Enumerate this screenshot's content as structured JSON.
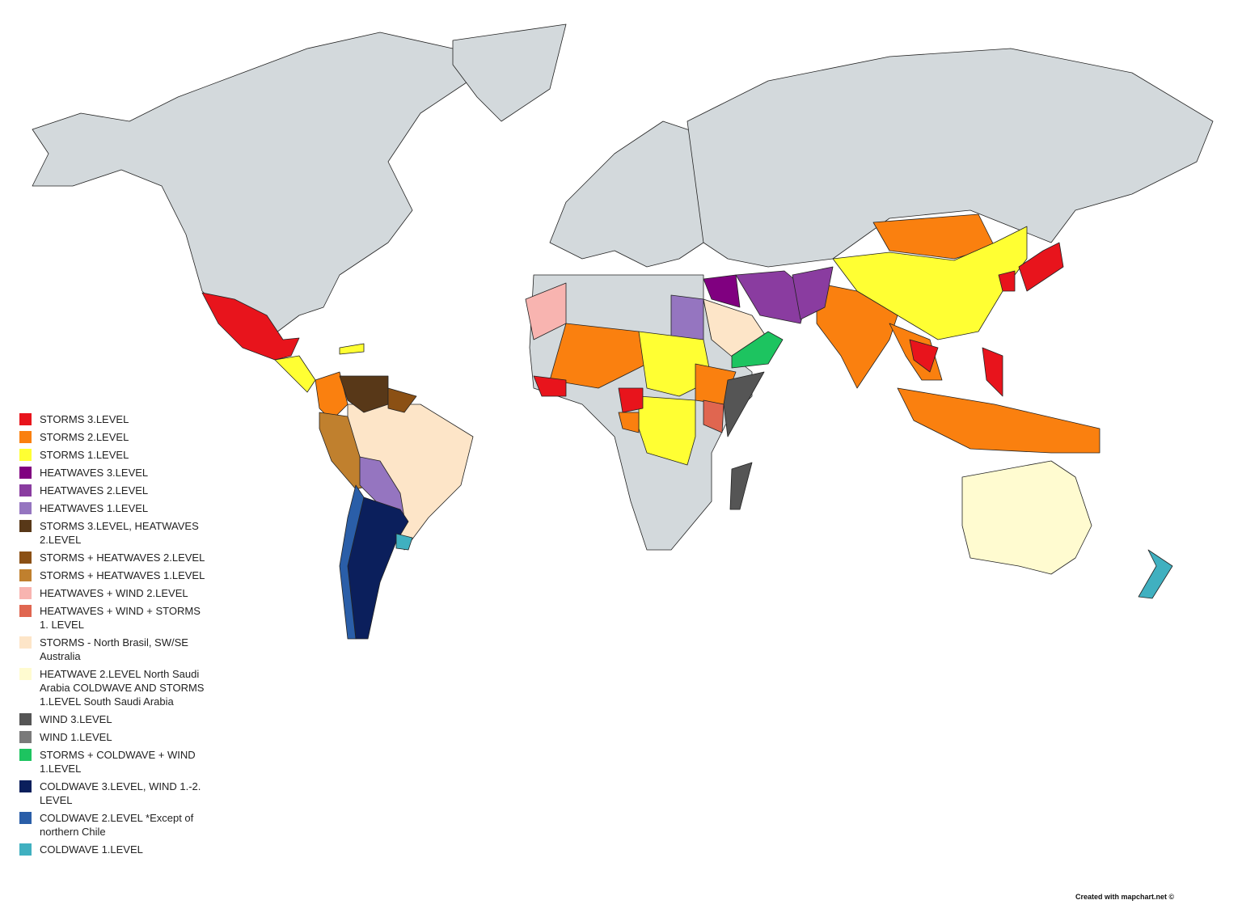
{
  "legend": {
    "items": [
      {
        "label": "STORMS 3.LEVEL",
        "color": "#e8141c"
      },
      {
        "label": "STORMS 2.LEVEL",
        "color": "#fa800f"
      },
      {
        "label": "STORMS 1.LEVEL",
        "color": "#ffff33"
      },
      {
        "label": "HEATWAVES 3.LEVEL",
        "color": "#800080"
      },
      {
        "label": "HEATWAVES 2.LEVEL",
        "color": "#8a3ca0"
      },
      {
        "label": "HEATWAVES 1.LEVEL",
        "color": "#9575c0"
      },
      {
        "label": "STORMS 3.LEVEL, HEATWAVES 2.LEVEL",
        "color": "#583818"
      },
      {
        "label": "STORMS + HEATWAVES 2.LEVEL",
        "color": "#8b5014"
      },
      {
        "label": "STORMS + HEATWAVES 1.LEVEL",
        "color": "#c0802e"
      },
      {
        "label": "HEATWAVES + WIND 2.LEVEL",
        "color": "#f8b4b0"
      },
      {
        "label": "HEATWAVES + WIND + STORMS 1. LEVEL",
        "color": "#e06650"
      },
      {
        "label": "STORMS - North Brasil, SW/SE Australia",
        "color": "#fde5c8"
      },
      {
        "label": "HEATWAVE 2.LEVEL North Saudi Arabia COLDWAVE AND STORMS 1.LEVEL South Saudi Arabia",
        "color": "#fffbd0"
      },
      {
        "label": "WIND 3.LEVEL",
        "color": "#555555"
      },
      {
        "label": "WIND 1.LEVEL",
        "color": "#7a7a7a"
      },
      {
        "label": "STORMS + COLDWAVE + WIND 1.LEVEL",
        "color": "#1dc460"
      },
      {
        "label": "COLDWAVE 3.LEVEL, WIND 1.-2. LEVEL",
        "color": "#0b1f5c"
      },
      {
        "label": "COLDWAVE 2.LEVEL *Except of northern Chile",
        "color": "#2a5ea8"
      },
      {
        "label": "COLDWAVE 1.LEVEL",
        "color": "#40b0c0"
      }
    ]
  },
  "credit": "Created with mapchart.net ©",
  "land_color": "#d3d9dc"
}
